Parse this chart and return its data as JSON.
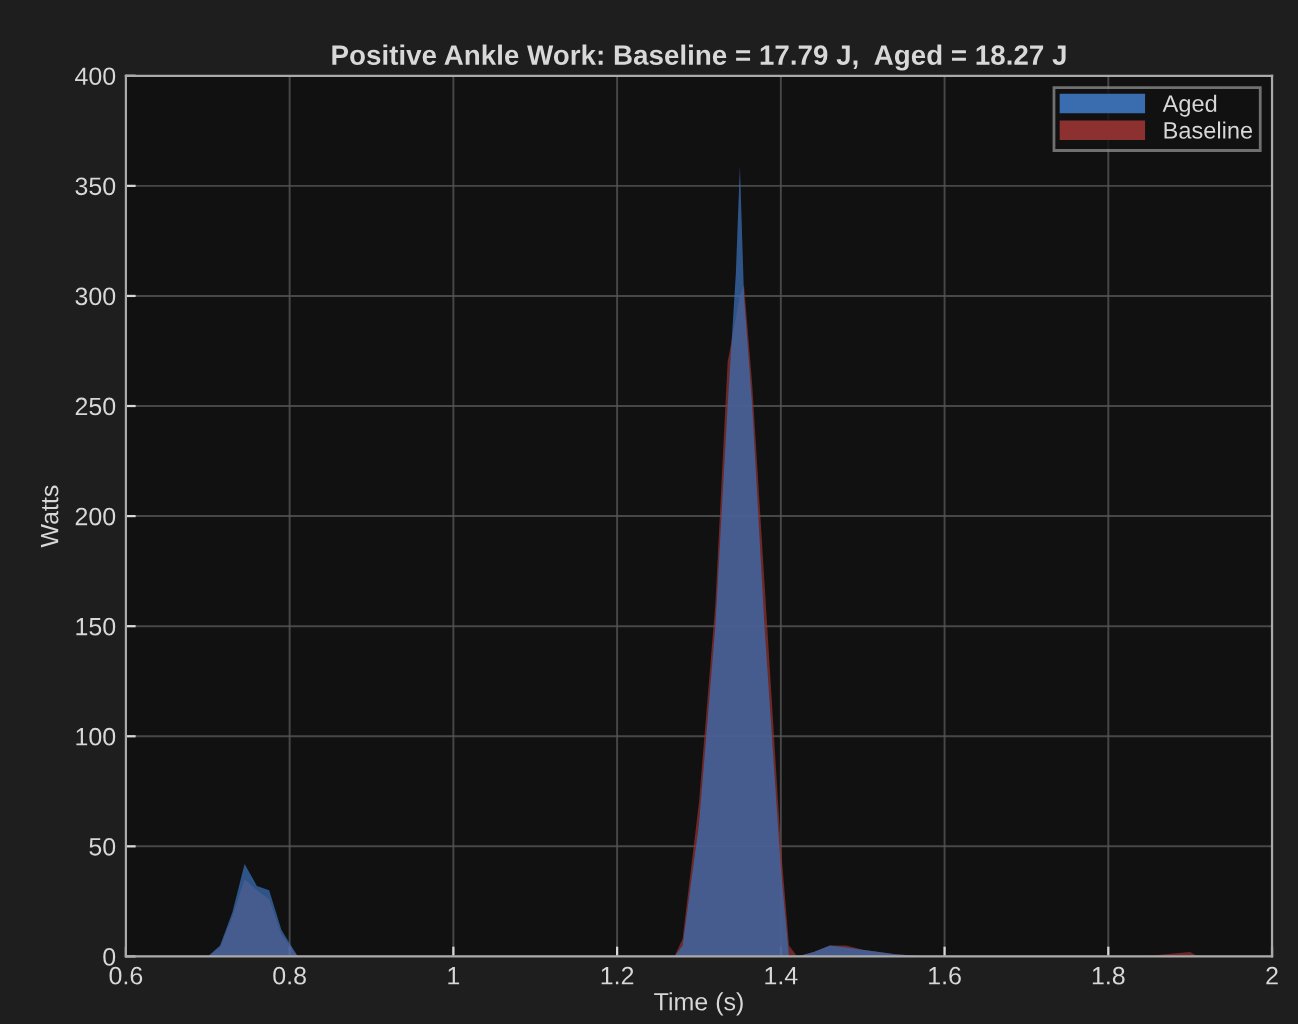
{
  "chart_data": {
    "type": "area",
    "title": "Positive Ankle Work: Baseline = 17.79 J,  Aged = 18.27 J",
    "xlabel": "Time (s)",
    "ylabel": "Watts",
    "x": [
      0.6,
      0.7,
      0.715,
      0.73,
      0.745,
      0.76,
      0.775,
      0.79,
      0.81,
      0.82,
      1.27,
      1.28,
      1.3,
      1.32,
      1.335,
      1.345,
      1.35,
      1.355,
      1.365,
      1.38,
      1.4,
      1.41,
      1.42,
      1.44,
      1.46,
      1.48,
      1.5,
      1.54,
      1.58,
      1.6,
      1.84,
      1.87,
      1.9,
      1.91,
      2.0
    ],
    "series": [
      {
        "name": "Baseline",
        "color": "#8c3030",
        "values": [
          0,
          0,
          4,
          18,
          35,
          30,
          26,
          10,
          0,
          0,
          0,
          8,
          70,
          160,
          270,
          290,
          300,
          305,
          260,
          170,
          50,
          5,
          0,
          2,
          5,
          5,
          3,
          1,
          0,
          0,
          0,
          1,
          2,
          0,
          0
        ]
      },
      {
        "name": "Aged",
        "color": "#3a6cb0",
        "values": [
          0,
          0,
          5,
          20,
          42,
          32,
          30,
          12,
          0,
          0,
          0,
          5,
          60,
          150,
          250,
          310,
          359,
          300,
          250,
          150,
          40,
          0,
          0,
          2,
          5,
          4,
          3,
          1,
          0,
          0,
          0,
          0,
          0,
          0,
          0
        ]
      }
    ],
    "xlim": [
      0.6,
      2
    ],
    "xticks": [
      0.6,
      0.8,
      1,
      1.2,
      1.4,
      1.6,
      1.8,
      2
    ],
    "ylim": [
      0,
      400
    ],
    "yticks": [
      0,
      50,
      100,
      150,
      200,
      250,
      300,
      350,
      400
    ],
    "grid": true,
    "legend": "top right"
  }
}
